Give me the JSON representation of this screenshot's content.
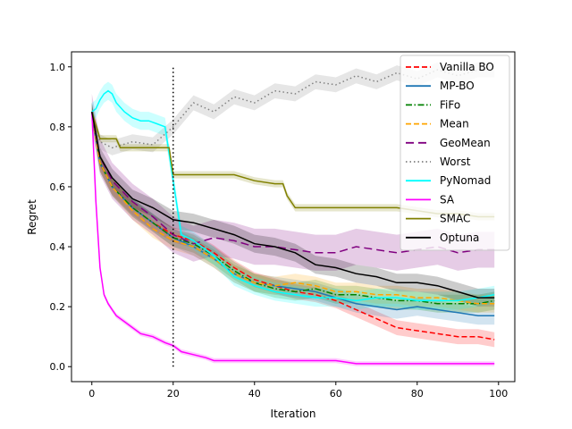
{
  "chart_data": {
    "type": "line",
    "xlabel": "Iteration",
    "ylabel": "Regret",
    "xlim": [
      -5,
      104
    ],
    "ylim": [
      -0.05,
      1.05
    ],
    "xticks": [
      0,
      20,
      40,
      60,
      80,
      100
    ],
    "yticks": [
      0.0,
      0.2,
      0.4,
      0.6,
      0.8,
      1.0
    ],
    "xtick_labels": [
      "0",
      "20",
      "40",
      "60",
      "80",
      "100"
    ],
    "ytick_labels": [
      "0.0",
      "0.2",
      "0.4",
      "0.6",
      "0.8",
      "1.0"
    ],
    "vline": {
      "x": 20,
      "ymin": 0.0,
      "ymax": 1.0,
      "color": "#000000",
      "style": "dotted"
    },
    "legend_position": "top-right",
    "series": [
      {
        "name": "Vanilla BO",
        "color": "#ff0000",
        "style": "dashed",
        "x": [
          0,
          2,
          5,
          10,
          15,
          20,
          25,
          30,
          35,
          40,
          45,
          50,
          55,
          60,
          65,
          70,
          75,
          80,
          85,
          90,
          95,
          99
        ],
        "y": [
          0.85,
          0.68,
          0.6,
          0.53,
          0.48,
          0.44,
          0.42,
          0.38,
          0.33,
          0.29,
          0.27,
          0.25,
          0.24,
          0.22,
          0.19,
          0.16,
          0.13,
          0.12,
          0.11,
          0.1,
          0.1,
          0.09
        ],
        "band": 0.025
      },
      {
        "name": "MP-BO",
        "color": "#1f77b4",
        "style": "solid",
        "x": [
          0,
          2,
          5,
          10,
          15,
          20,
          25,
          30,
          35,
          40,
          45,
          50,
          55,
          60,
          65,
          70,
          75,
          80,
          85,
          90,
          95,
          99
        ],
        "y": [
          0.85,
          0.68,
          0.6,
          0.53,
          0.48,
          0.43,
          0.4,
          0.36,
          0.31,
          0.28,
          0.27,
          0.26,
          0.25,
          0.23,
          0.21,
          0.2,
          0.19,
          0.2,
          0.19,
          0.18,
          0.17,
          0.17
        ],
        "band": 0.03
      },
      {
        "name": "FiFo",
        "color": "#008000",
        "style": "dashdot",
        "x": [
          0,
          2,
          5,
          10,
          15,
          20,
          25,
          30,
          35,
          40,
          45,
          50,
          55,
          60,
          65,
          70,
          75,
          80,
          85,
          90,
          95,
          99
        ],
        "y": [
          0.85,
          0.68,
          0.6,
          0.53,
          0.48,
          0.43,
          0.41,
          0.37,
          0.32,
          0.28,
          0.26,
          0.25,
          0.26,
          0.24,
          0.24,
          0.23,
          0.22,
          0.22,
          0.21,
          0.21,
          0.21,
          0.22
        ],
        "band": 0.03
      },
      {
        "name": "Mean",
        "color": "#ffa500",
        "style": "dashed",
        "x": [
          0,
          2,
          5,
          10,
          15,
          20,
          25,
          30,
          35,
          40,
          45,
          50,
          55,
          60,
          65,
          70,
          75,
          80,
          85,
          90,
          95,
          99
        ],
        "y": [
          0.85,
          0.68,
          0.6,
          0.52,
          0.46,
          0.42,
          0.4,
          0.36,
          0.31,
          0.28,
          0.27,
          0.28,
          0.27,
          0.25,
          0.25,
          0.24,
          0.24,
          0.23,
          0.23,
          0.22,
          0.21,
          0.21
        ],
        "band": 0.03
      },
      {
        "name": "GeoMean",
        "color": "#800080",
        "style": "dashed-long",
        "x": [
          0,
          2,
          5,
          10,
          15,
          20,
          25,
          30,
          35,
          40,
          45,
          50,
          55,
          60,
          65,
          70,
          75,
          80,
          85,
          90,
          95,
          99
        ],
        "y": [
          0.85,
          0.7,
          0.62,
          0.55,
          0.5,
          0.44,
          0.41,
          0.43,
          0.42,
          0.4,
          0.4,
          0.39,
          0.38,
          0.38,
          0.4,
          0.39,
          0.38,
          0.39,
          0.4,
          0.38,
          0.39,
          0.39
        ],
        "band": 0.06
      },
      {
        "name": "Worst",
        "color": "#808080",
        "style": "dotted",
        "x": [
          0,
          2,
          5,
          10,
          15,
          20,
          25,
          30,
          35,
          40,
          45,
          50,
          55,
          60,
          65,
          70,
          75,
          80,
          85,
          90,
          95,
          99
        ],
        "y": [
          0.85,
          0.75,
          0.73,
          0.75,
          0.74,
          0.8,
          0.88,
          0.85,
          0.9,
          0.88,
          0.92,
          0.91,
          0.95,
          0.94,
          0.97,
          0.95,
          0.98,
          0.96,
          0.99,
          0.97,
          0.99,
          0.99
        ],
        "band": 0.025
      },
      {
        "name": "PyNomad",
        "color": "#00ffff",
        "style": "solid",
        "x": [
          0,
          1,
          2,
          3,
          4,
          5,
          6,
          8,
          10,
          12,
          14,
          16,
          18,
          20,
          22,
          25,
          30,
          35,
          40,
          45,
          50,
          55,
          60,
          65,
          70,
          75,
          80,
          85,
          90,
          95,
          99
        ],
        "y": [
          0.85,
          0.86,
          0.89,
          0.91,
          0.92,
          0.91,
          0.88,
          0.85,
          0.83,
          0.82,
          0.82,
          0.81,
          0.8,
          0.62,
          0.44,
          0.42,
          0.37,
          0.3,
          0.27,
          0.25,
          0.24,
          0.23,
          0.23,
          0.22,
          0.23,
          0.23,
          0.22,
          0.22,
          0.22,
          0.23,
          0.24
        ],
        "band": 0.03
      },
      {
        "name": "SA",
        "color": "#ff00ff",
        "style": "solid",
        "x": [
          0,
          1,
          2,
          3,
          4,
          5,
          6,
          8,
          10,
          12,
          15,
          18,
          20,
          22,
          25,
          28,
          30,
          35,
          40,
          45,
          50,
          55,
          60,
          65,
          70,
          75,
          80,
          85,
          90,
          95,
          99
        ],
        "y": [
          0.85,
          0.55,
          0.33,
          0.24,
          0.21,
          0.19,
          0.17,
          0.15,
          0.13,
          0.11,
          0.1,
          0.08,
          0.07,
          0.05,
          0.04,
          0.03,
          0.02,
          0.02,
          0.02,
          0.02,
          0.02,
          0.02,
          0.02,
          0.01,
          0.01,
          0.01,
          0.01,
          0.01,
          0.01,
          0.01,
          0.01
        ],
        "band": 0.008
      },
      {
        "name": "SMAC",
        "color": "#808000",
        "style": "solid",
        "x": [
          0,
          2,
          4,
          6,
          7,
          10,
          15,
          19,
          20,
          25,
          30,
          35,
          40,
          45,
          47,
          48,
          50,
          55,
          60,
          65,
          70,
          75,
          80,
          85,
          90,
          95,
          99
        ],
        "y": [
          0.85,
          0.76,
          0.76,
          0.76,
          0.73,
          0.73,
          0.73,
          0.73,
          0.64,
          0.64,
          0.64,
          0.64,
          0.62,
          0.61,
          0.61,
          0.57,
          0.53,
          0.53,
          0.53,
          0.53,
          0.53,
          0.53,
          0.52,
          0.51,
          0.51,
          0.5,
          0.5
        ],
        "band": 0.012
      },
      {
        "name": "Optuna",
        "color": "#000000",
        "style": "solid",
        "x": [
          0,
          2,
          5,
          10,
          15,
          20,
          25,
          30,
          35,
          40,
          45,
          50,
          55,
          60,
          65,
          70,
          75,
          80,
          85,
          90,
          95,
          99
        ],
        "y": [
          0.85,
          0.7,
          0.63,
          0.56,
          0.53,
          0.49,
          0.48,
          0.46,
          0.44,
          0.41,
          0.4,
          0.38,
          0.34,
          0.33,
          0.31,
          0.3,
          0.28,
          0.28,
          0.27,
          0.25,
          0.23,
          0.23
        ],
        "band": 0.03
      }
    ]
  }
}
